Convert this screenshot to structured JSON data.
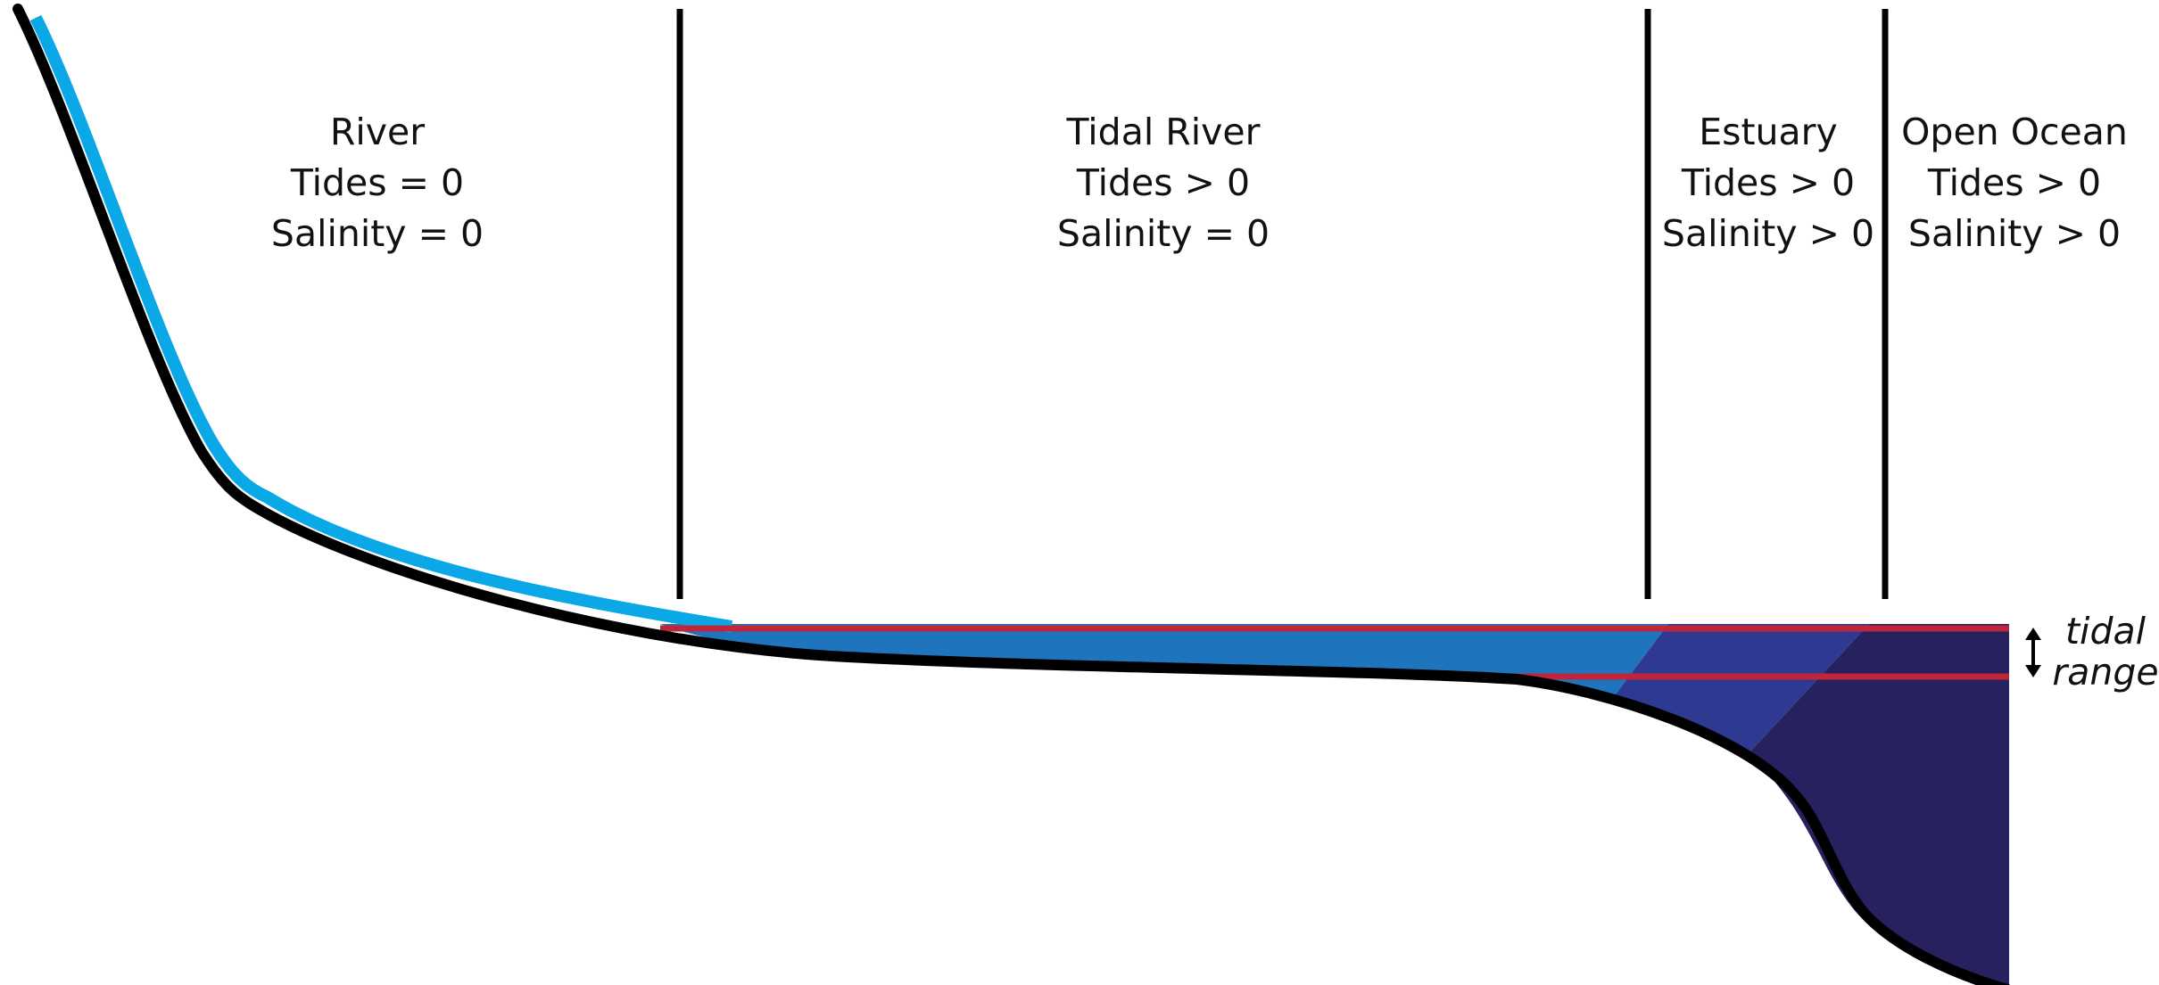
{
  "zones": [
    {
      "name": "River",
      "tides": "Tides = 0",
      "salinity": "Salinity = 0"
    },
    {
      "name": "Tidal River",
      "tides": "Tides > 0",
      "salinity": "Salinity = 0"
    },
    {
      "name": "Estuary",
      "tides": "Tides > 0",
      "salinity": "Salinity > 0"
    },
    {
      "name": "Open Ocean",
      "tides": "Tides > 0",
      "salinity": "Salinity > 0"
    }
  ],
  "tidal_range": {
    "line1": "tidal",
    "line2": "range"
  },
  "colors": {
    "river_water": "#0aa8e6",
    "tidal_river_water": "#1f74be",
    "estuary_water": "#2e3992",
    "ocean_water": "#27215f",
    "tide_lines": "#c0263a",
    "bed": "#000000"
  },
  "icons": [
    "double-arrow-icon"
  ]
}
